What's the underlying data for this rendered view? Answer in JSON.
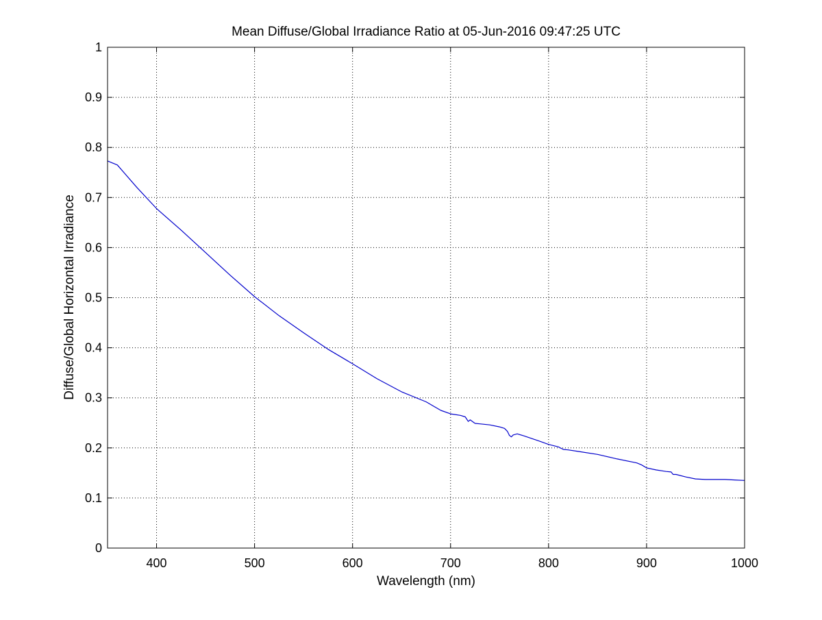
{
  "chart_data": {
    "type": "line",
    "title": "Mean Diffuse/Global Irradiance Ratio at 05-Jun-2016 09:47:25 UTC",
    "xlabel": "Wavelength (nm)",
    "ylabel": "Diffuse/Global Horizontal Irradiance",
    "xlim": [
      350,
      1000
    ],
    "ylim": [
      0,
      1
    ],
    "xticks": [
      400,
      500,
      600,
      700,
      800,
      900,
      1000
    ],
    "xtick_labels": [
      "400",
      "500",
      "600",
      "700",
      "800",
      "900",
      "1000"
    ],
    "yticks": [
      0,
      0.1,
      0.2,
      0.3,
      0.4,
      0.5,
      0.6,
      0.7,
      0.8,
      0.9,
      1
    ],
    "ytick_labels": [
      "0",
      "0.1",
      "0.2",
      "0.3",
      "0.4",
      "0.5",
      "0.6",
      "0.7",
      "0.8",
      "0.9",
      "1"
    ],
    "grid": true,
    "line_color": "#0000cc",
    "series": [
      {
        "x": [
          350,
          360,
          380,
          400,
          425,
          450,
          475,
          500,
          525,
          550,
          575,
          600,
          625,
          650,
          675,
          690,
          700,
          710,
          715,
          718,
          720,
          725,
          730,
          740,
          750,
          755,
          758,
          760,
          762,
          764,
          768,
          775,
          790,
          800,
          810,
          815,
          820,
          830,
          850,
          870,
          890,
          895,
          900,
          910,
          920,
          925,
          927,
          930,
          940,
          950,
          960,
          970,
          980,
          990,
          1000
        ],
        "y": [
          0.773,
          0.765,
          0.72,
          0.678,
          0.635,
          0.59,
          0.545,
          0.502,
          0.464,
          0.43,
          0.397,
          0.368,
          0.338,
          0.312,
          0.292,
          0.275,
          0.268,
          0.265,
          0.262,
          0.253,
          0.256,
          0.249,
          0.248,
          0.246,
          0.242,
          0.239,
          0.233,
          0.225,
          0.222,
          0.226,
          0.228,
          0.224,
          0.214,
          0.207,
          0.202,
          0.197,
          0.196,
          0.193,
          0.187,
          0.178,
          0.17,
          0.166,
          0.16,
          0.156,
          0.153,
          0.152,
          0.147,
          0.147,
          0.142,
          0.138,
          0.137,
          0.137,
          0.137,
          0.136,
          0.135
        ]
      }
    ]
  }
}
